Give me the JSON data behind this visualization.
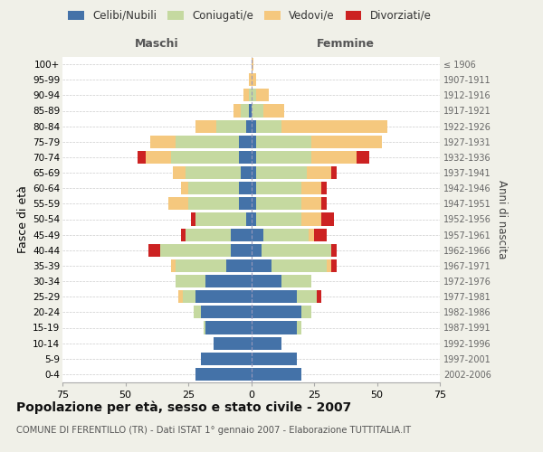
{
  "age_groups": [
    "0-4",
    "5-9",
    "10-14",
    "15-19",
    "20-24",
    "25-29",
    "30-34",
    "35-39",
    "40-44",
    "45-49",
    "50-54",
    "55-59",
    "60-64",
    "65-69",
    "70-74",
    "75-79",
    "80-84",
    "85-89",
    "90-94",
    "95-99",
    "100+"
  ],
  "birth_years": [
    "2002-2006",
    "1997-2001",
    "1992-1996",
    "1987-1991",
    "1982-1986",
    "1977-1981",
    "1972-1976",
    "1967-1971",
    "1962-1966",
    "1957-1961",
    "1952-1956",
    "1947-1951",
    "1942-1946",
    "1937-1941",
    "1932-1936",
    "1927-1931",
    "1922-1926",
    "1917-1921",
    "1912-1916",
    "1907-1911",
    "≤ 1906"
  ],
  "males_celibi": [
    22,
    20,
    15,
    18,
    20,
    22,
    18,
    10,
    8,
    8,
    2,
    5,
    5,
    4,
    5,
    5,
    2,
    1,
    0,
    0,
    0
  ],
  "males_coniugati": [
    0,
    0,
    0,
    1,
    3,
    5,
    12,
    20,
    28,
    18,
    20,
    20,
    20,
    22,
    27,
    25,
    12,
    3,
    1,
    0,
    0
  ],
  "males_vedovi": [
    0,
    0,
    0,
    0,
    0,
    2,
    0,
    2,
    0,
    0,
    0,
    8,
    3,
    5,
    10,
    10,
    8,
    3,
    2,
    1,
    0
  ],
  "males_divorziati": [
    0,
    0,
    0,
    0,
    0,
    0,
    0,
    0,
    5,
    2,
    2,
    0,
    0,
    0,
    3,
    0,
    0,
    0,
    0,
    0,
    0
  ],
  "females_nubili": [
    20,
    18,
    12,
    18,
    20,
    18,
    12,
    8,
    4,
    5,
    2,
    2,
    2,
    2,
    2,
    2,
    2,
    0,
    0,
    0,
    0
  ],
  "females_coniugate": [
    0,
    0,
    0,
    2,
    4,
    8,
    12,
    22,
    28,
    18,
    18,
    18,
    18,
    20,
    22,
    22,
    10,
    5,
    2,
    0,
    0
  ],
  "females_vedove": [
    0,
    0,
    0,
    0,
    0,
    0,
    0,
    2,
    0,
    2,
    8,
    8,
    8,
    10,
    18,
    28,
    42,
    8,
    5,
    2,
    1
  ],
  "females_divorziate": [
    0,
    0,
    0,
    0,
    0,
    2,
    0,
    2,
    2,
    5,
    5,
    2,
    2,
    2,
    5,
    0,
    0,
    0,
    0,
    0,
    0
  ],
  "colors": {
    "celibi_nubili": "#4472a8",
    "coniugati": "#c5d9a0",
    "vedovi": "#f5c87e",
    "divorziati": "#cc2222"
  },
  "xlim": 75,
  "title": "Popolazione per età, sesso e stato civile - 2007",
  "subtitle": "COMUNE DI FERENTILLO (TR) - Dati ISTAT 1° gennaio 2007 - Elaborazione TUTTITALIA.IT",
  "ylabel_left": "Fasce di età",
  "ylabel_right": "Anni di nascita",
  "label_males": "Maschi",
  "label_females": "Femmine",
  "legend": [
    "Celibi/Nubili",
    "Coniugati/e",
    "Vedovi/e",
    "Divorziati/e"
  ],
  "bg_color": "#f0f0e8",
  "plot_bg": "#ffffff",
  "xticks": [
    -75,
    -50,
    -25,
    0,
    25,
    50,
    75
  ]
}
